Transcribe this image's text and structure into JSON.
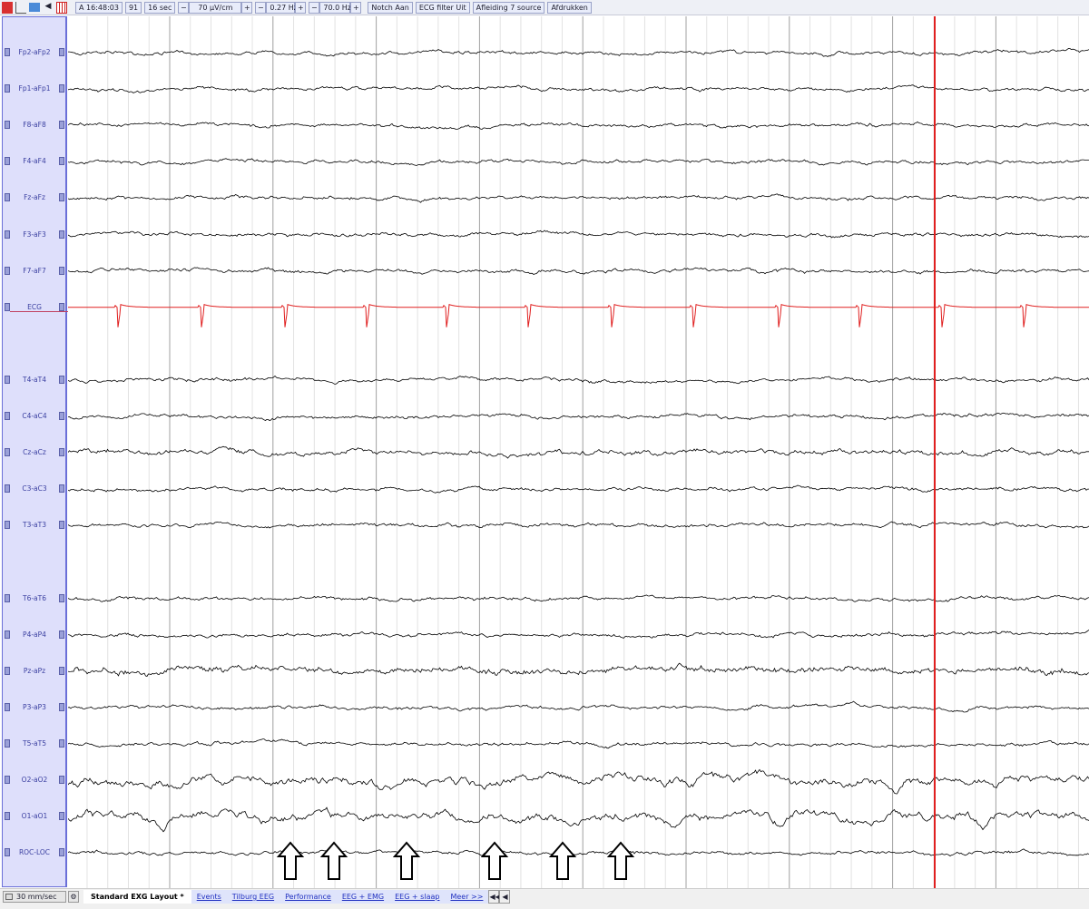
{
  "toolbar": {
    "icons": [
      "cursor-icon",
      "chart-icon",
      "folder-icon",
      "speaker-icon",
      "grid-icon"
    ],
    "time": "A 16:48:03",
    "page": "91",
    "duration": "16 sec",
    "sensitivity": "70 µV/cm",
    "low_filter": "0.27 Hz",
    "high_filter": "70.0 Hz",
    "minus": "−",
    "plus": "+",
    "notch": "Notch Aan",
    "ecg_filter": "ECG filter Uit",
    "montage": "Afleiding 7 source",
    "print": "Afdrukken"
  },
  "channels": [
    "Fp2-aFp2",
    "Fp1-aFp1",
    "F8-aF8",
    "F4-aF4",
    "Fz-aFz",
    "F3-aF3",
    "F7-aF7",
    "ECG",
    "",
    "T4-aT4",
    "C4-aC4",
    "Cz-aCz",
    "C3-aC3",
    "T3-aT3",
    "",
    "T6-aT6",
    "P4-aP4",
    "Pz-aPz",
    "P3-aP3",
    "T5-aT5",
    "O2-aO2",
    "O1-aO1",
    "ROC-LOC"
  ],
  "colors": {
    "trace": "#000000",
    "ecg": "#e02020",
    "cursor": "#e02020",
    "sidebar": "#dedffb",
    "grid_major": "#a0a0a0",
    "grid_minor": "#e2e2e2"
  },
  "bottom": {
    "speed": "30 mm/sec",
    "settings_icon": "gear-icon",
    "tabs": [
      "Standard EXG Layout *",
      "Events",
      "Tilburg EEG",
      "Performance",
      "EEG + EMG",
      "EEG + slaap",
      "Meer >>"
    ],
    "nav": [
      "◀◀",
      "◀"
    ]
  },
  "annotations": {
    "arrow_count": 6
  }
}
